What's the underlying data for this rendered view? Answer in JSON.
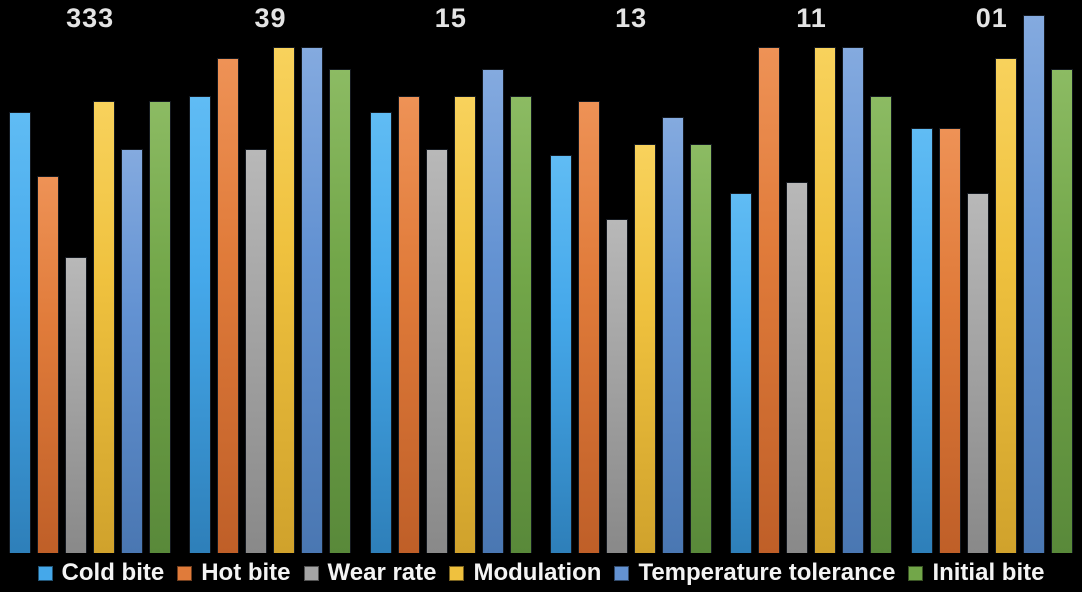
{
  "chart_data": {
    "type": "bar",
    "title": "",
    "categories": [
      "333",
      "39",
      "15",
      "13",
      "11",
      "01"
    ],
    "series": [
      {
        "name": "Cold bite",
        "values": [
          8.2,
          8.5,
          8.2,
          7.4,
          6.7,
          7.9
        ],
        "color": "#45A8EA",
        "color_light": "#60BCF4",
        "color_dark": "#2E7FB9"
      },
      {
        "name": "Hot bite",
        "values": [
          7.0,
          9.2,
          8.5,
          8.4,
          9.4,
          7.9
        ],
        "color": "#E07B3A",
        "color_light": "#EE9256",
        "color_dark": "#BF5F28"
      },
      {
        "name": "Wear rate",
        "values": [
          5.5,
          7.5,
          7.5,
          6.2,
          6.9,
          6.7
        ],
        "color": "#A5A5A5",
        "color_light": "#B8B8B8",
        "color_dark": "#898989"
      },
      {
        "name": "Modulation",
        "values": [
          8.4,
          9.4,
          8.5,
          7.6,
          9.4,
          9.2
        ],
        "color": "#EFC13E",
        "color_light": "#F8D25C",
        "color_dark": "#D0A22C"
      },
      {
        "name": "Temperature tolerance",
        "values": [
          7.5,
          9.4,
          9.0,
          8.1,
          9.4,
          10.0
        ],
        "color": "#6392D2",
        "color_light": "#84AADF",
        "color_dark": "#4A77B2"
      },
      {
        "name": "Initial bite",
        "values": [
          8.4,
          9.0,
          8.5,
          7.6,
          8.5,
          9.0
        ],
        "color": "#72A649",
        "color_light": "#8CBB63",
        "color_dark": "#59893A"
      }
    ],
    "ylim": [
      0,
      10
    ],
    "xlabel": "",
    "ylabel": "",
    "grid": false,
    "axes_visible": false,
    "legend_position": "bottom",
    "background_color": "#000000",
    "category_label_color": "#E4E4E4",
    "legend_text_color": "#F4F4F4"
  }
}
